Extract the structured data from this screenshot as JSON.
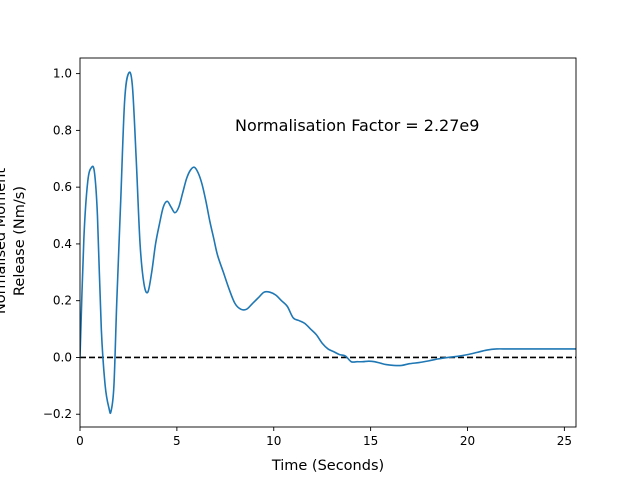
{
  "chart_data": {
    "type": "line",
    "title": "",
    "xlabel": "Time (Seconds)",
    "ylabel": [
      "Normalised Moment",
      "Release (Nm/s)"
    ],
    "xlim": [
      0,
      25.6
    ],
    "ylim": [
      -0.245,
      1.055
    ],
    "xticks": [
      0,
      5,
      10,
      15,
      20,
      25
    ],
    "xtick_labels": [
      "0",
      "5",
      "10",
      "15",
      "20",
      "25"
    ],
    "yticks": [
      -0.2,
      0.0,
      0.2,
      0.4,
      0.6,
      0.8,
      1.0
    ],
    "ytick_labels": [
      "−0.2",
      "0.0",
      "0.2",
      "0.4",
      "0.6",
      "0.8",
      "1.0"
    ],
    "grid": false,
    "annotation": {
      "text": "Normalisation Factor = 2.27e9",
      "x": 8.0,
      "y": 0.8
    },
    "series": [
      {
        "color": "#1f77b4",
        "x": [
          0,
          0.2,
          0.4,
          0.6,
          0.75,
          0.9,
          1.1,
          1.3,
          1.5,
          1.6,
          1.75,
          1.9,
          2.1,
          2.3,
          2.5,
          2.7,
          2.9,
          3.1,
          3.3,
          3.5,
          3.7,
          3.9,
          4.1,
          4.3,
          4.5,
          4.7,
          4.9,
          5.1,
          5.3,
          5.5,
          5.7,
          5.9,
          6.1,
          6.3,
          6.5,
          6.7,
          6.9,
          7.1,
          7.4,
          7.7,
          8.0,
          8.3,
          8.6,
          8.9,
          9.2,
          9.5,
          9.8,
          10.1,
          10.4,
          10.7,
          11.0,
          11.3,
          11.6,
          11.9,
          12.2,
          12.5,
          12.8,
          13.1,
          13.4,
          13.7,
          14.0,
          14.3,
          14.6,
          14.9,
          15.2,
          15.5,
          15.8,
          16.2,
          16.6,
          17.0,
          17.5,
          18.0,
          18.5,
          19.0,
          19.5,
          20.0,
          20.5,
          21.0,
          21.5,
          22.0,
          22.5,
          23.0,
          23.5,
          24.0,
          24.5,
          25.0,
          25.3,
          25.6
        ],
        "y": [
          0.0,
          0.42,
          0.62,
          0.67,
          0.65,
          0.5,
          0.1,
          -0.1,
          -0.18,
          -0.19,
          -0.1,
          0.2,
          0.55,
          0.9,
          1.0,
          0.96,
          0.7,
          0.4,
          0.26,
          0.23,
          0.3,
          0.4,
          0.47,
          0.53,
          0.55,
          0.53,
          0.51,
          0.53,
          0.58,
          0.63,
          0.66,
          0.67,
          0.65,
          0.61,
          0.55,
          0.48,
          0.42,
          0.36,
          0.3,
          0.24,
          0.19,
          0.17,
          0.17,
          0.19,
          0.21,
          0.23,
          0.23,
          0.22,
          0.2,
          0.18,
          0.14,
          0.13,
          0.12,
          0.1,
          0.08,
          0.05,
          0.03,
          0.02,
          0.01,
          0.005,
          -0.015,
          -0.015,
          -0.015,
          -0.013,
          -0.015,
          -0.02,
          -0.025,
          -0.028,
          -0.028,
          -0.022,
          -0.018,
          -0.012,
          -0.005,
          0.0,
          0.004,
          0.01,
          0.018,
          0.026,
          0.03,
          0.03,
          0.03,
          0.03,
          0.03,
          0.03,
          0.03,
          0.03,
          0.03,
          0.03
        ]
      }
    ],
    "reference_line": {
      "y": 0.0,
      "style": "dashed",
      "color": "#000000"
    }
  }
}
